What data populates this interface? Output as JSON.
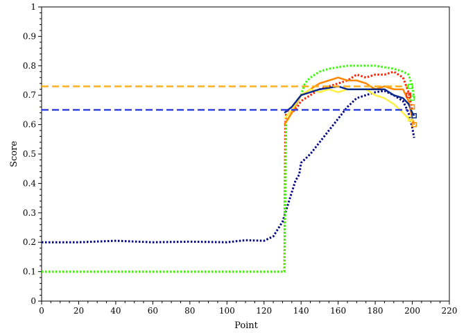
{
  "chart_data": {
    "type": "line",
    "xlabel": "Point",
    "ylabel": "Score",
    "xlim": [
      0,
      220
    ],
    "ylim": [
      0,
      1
    ],
    "x_ticks": [
      0,
      20,
      40,
      60,
      80,
      100,
      120,
      140,
      160,
      180,
      200,
      220
    ],
    "y_ticks": [
      0,
      0.1,
      0.2,
      0.3,
      0.4,
      0.5,
      0.6,
      0.7,
      0.8,
      0.9,
      1
    ],
    "x_tick_labels": [
      "0",
      "20",
      "40",
      "60",
      "80",
      "100",
      "120",
      "140",
      "160",
      "180",
      "200",
      "220"
    ],
    "y_tick_labels": [
      "0",
      "0.1",
      "0.2",
      "0.3",
      "0.4",
      "0.5",
      "0.6",
      "0.7",
      "0.8",
      "0.9",
      "1"
    ],
    "grid": false,
    "hlines": [
      {
        "y": 0.73,
        "color": "#ffb020"
      },
      {
        "y": 0.65,
        "color": "#3344dd"
      }
    ],
    "series": [
      {
        "color": "#000080",
        "style": "dotted",
        "points": [
          [
            0,
            0.2
          ],
          [
            20,
            0.2
          ],
          [
            40,
            0.205
          ],
          [
            60,
            0.2
          ],
          [
            80,
            0.202
          ],
          [
            100,
            0.2
          ],
          [
            110,
            0.207
          ],
          [
            120,
            0.205
          ],
          [
            125,
            0.22
          ],
          [
            130,
            0.27
          ],
          [
            133,
            0.33
          ],
          [
            135,
            0.37
          ],
          [
            137,
            0.41
          ],
          [
            139,
            0.43
          ],
          [
            140,
            0.47
          ],
          [
            145,
            0.5
          ],
          [
            150,
            0.54
          ],
          [
            155,
            0.58
          ],
          [
            160,
            0.62
          ],
          [
            165,
            0.66
          ],
          [
            170,
            0.69
          ],
          [
            175,
            0.7
          ],
          [
            180,
            0.71
          ],
          [
            185,
            0.715
          ],
          [
            190,
            0.7
          ],
          [
            195,
            0.68
          ],
          [
            198,
            0.64
          ],
          [
            200,
            0.59
          ],
          [
            201,
            0.555
          ]
        ]
      },
      {
        "color": "#ff2200",
        "style": "dotted",
        "points": [
          [
            0,
            0.1
          ],
          [
            130,
            0.1
          ],
          [
            131,
            0.1
          ],
          [
            131.5,
            0.6
          ],
          [
            132,
            0.65
          ],
          [
            135,
            0.64
          ],
          [
            138,
            0.66
          ],
          [
            140,
            0.68
          ],
          [
            145,
            0.7
          ],
          [
            150,
            0.72
          ],
          [
            155,
            0.73
          ],
          [
            160,
            0.74
          ],
          [
            165,
            0.75
          ],
          [
            170,
            0.77
          ],
          [
            175,
            0.76
          ],
          [
            180,
            0.77
          ],
          [
            185,
            0.77
          ],
          [
            190,
            0.78
          ],
          [
            195,
            0.76
          ],
          [
            198,
            0.71
          ],
          [
            200,
            0.65
          ]
        ]
      },
      {
        "color": "#33ff00",
        "style": "dotted",
        "points": [
          [
            0,
            0.1
          ],
          [
            130,
            0.1
          ],
          [
            131,
            0.1
          ],
          [
            132,
            0.61
          ],
          [
            135,
            0.64
          ],
          [
            138,
            0.68
          ],
          [
            140,
            0.7
          ],
          [
            142,
            0.74
          ],
          [
            145,
            0.76
          ],
          [
            150,
            0.78
          ],
          [
            155,
            0.79
          ],
          [
            160,
            0.795
          ],
          [
            165,
            0.8
          ],
          [
            170,
            0.8
          ],
          [
            180,
            0.8
          ],
          [
            190,
            0.79
          ],
          [
            195,
            0.78
          ],
          [
            198,
            0.77
          ],
          [
            200,
            0.73
          ],
          [
            201,
            0.69
          ]
        ]
      },
      {
        "color": "#ff8800",
        "style": "solid",
        "points": [
          [
            131,
            0.6
          ],
          [
            135,
            0.64
          ],
          [
            140,
            0.7
          ],
          [
            145,
            0.72
          ],
          [
            150,
            0.74
          ],
          [
            155,
            0.75
          ],
          [
            160,
            0.76
          ],
          [
            165,
            0.75
          ],
          [
            170,
            0.75
          ],
          [
            175,
            0.74
          ],
          [
            180,
            0.72
          ],
          [
            185,
            0.73
          ],
          [
            190,
            0.72
          ],
          [
            195,
            0.72
          ],
          [
            198,
            0.68
          ],
          [
            200,
            0.62
          ],
          [
            201,
            0.6
          ]
        ]
      },
      {
        "color": "#ffee44",
        "style": "solid",
        "points": [
          [
            131,
            0.62
          ],
          [
            135,
            0.65
          ],
          [
            140,
            0.7
          ],
          [
            145,
            0.72
          ],
          [
            150,
            0.71
          ],
          [
            155,
            0.72
          ],
          [
            160,
            0.71
          ],
          [
            165,
            0.72
          ],
          [
            170,
            0.72
          ],
          [
            175,
            0.72
          ],
          [
            180,
            0.7
          ],
          [
            185,
            0.69
          ],
          [
            190,
            0.67
          ],
          [
            195,
            0.64
          ],
          [
            198,
            0.62
          ],
          [
            200,
            0.61
          ]
        ]
      },
      {
        "color": "#0a2a8a",
        "style": "solid",
        "points": [
          [
            131,
            0.64
          ],
          [
            135,
            0.66
          ],
          [
            140,
            0.7
          ],
          [
            145,
            0.71
          ],
          [
            150,
            0.72
          ],
          [
            155,
            0.725
          ],
          [
            160,
            0.73
          ],
          [
            165,
            0.72
          ],
          [
            170,
            0.72
          ],
          [
            175,
            0.72
          ],
          [
            180,
            0.72
          ],
          [
            185,
            0.72
          ],
          [
            190,
            0.7
          ],
          [
            195,
            0.69
          ],
          [
            198,
            0.67
          ],
          [
            200,
            0.64
          ],
          [
            201,
            0.63
          ]
        ]
      }
    ],
    "markers": [
      {
        "x": 199,
        "y": 0.73,
        "color": "#33ff00"
      },
      {
        "x": 200,
        "y": 0.69,
        "color": "#33ff00"
      },
      {
        "x": 198,
        "y": 0.7,
        "color": "#ff2200"
      },
      {
        "x": 200,
        "y": 0.66,
        "color": "#ff8800"
      },
      {
        "x": 201,
        "y": 0.6,
        "color": "#ff8800"
      },
      {
        "x": 199,
        "y": 0.62,
        "color": "#ffee44"
      },
      {
        "x": 201,
        "y": 0.63,
        "color": "#0a2a8a"
      }
    ]
  }
}
